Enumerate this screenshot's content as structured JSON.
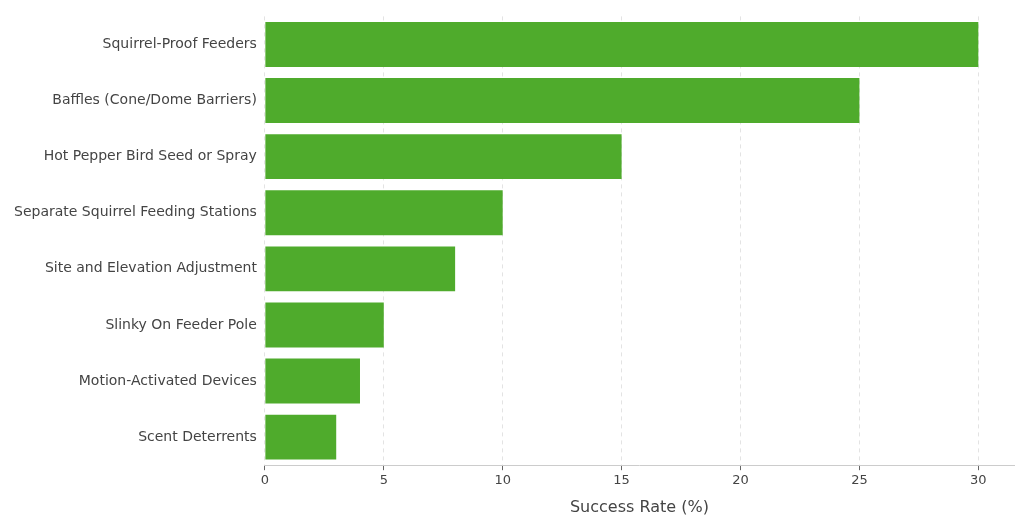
{
  "chart_data": {
    "type": "bar",
    "orientation": "horizontal",
    "x_label": "Success Rate (%)",
    "categories": [
      "Squirrel-Proof Feeders",
      "Baffles (Cone/Dome Barriers)",
      "Hot Pepper Bird Seed or Spray",
      "Separate Squirrel Feeding Stations",
      "Site and Elevation Adjustment",
      "Slinky On Feeder Pole",
      "Motion-Activated Devices",
      "Scent Deterrents"
    ],
    "values": [
      30,
      25,
      15,
      10,
      8,
      5,
      4,
      3
    ],
    "color": "#4fab2c",
    "xlim": [
      0,
      31.5
    ],
    "xticks": [
      0,
      5,
      10,
      15,
      20,
      25,
      30
    ],
    "grid": true
  }
}
